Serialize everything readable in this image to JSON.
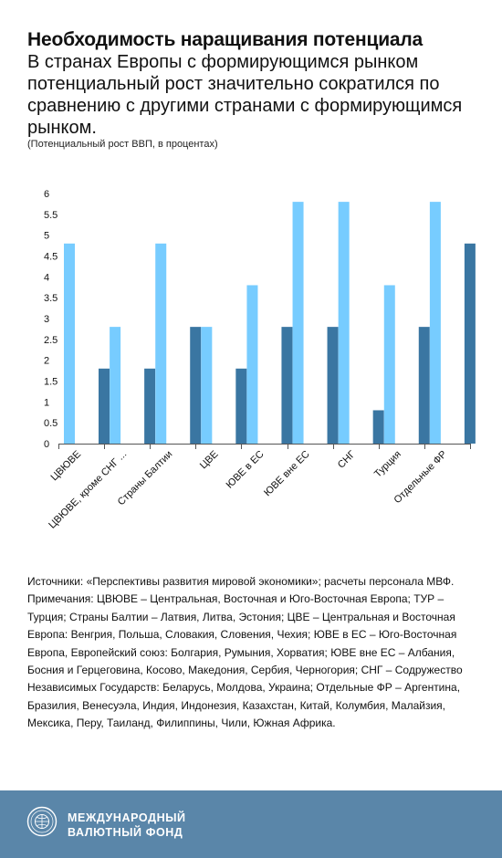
{
  "header": {
    "title": "Необходимость наращивания потенциала",
    "subtitle": "В странах Европы с формирующимся рынком потенциальный рост значительно сократился по сравнению с другими странами с формирующимся рынком.",
    "unit_note": "(Потенциальный рост ВВП, в процентах)"
  },
  "chart_data": {
    "type": "bar",
    "title": "Необходимость наращивания потенциала",
    "categories": [
      "ЦВЮВЕ",
      "ЦВЮВЕ, кроме СНГ ...",
      "Страны Балтии",
      "ЦВЕ",
      "ЮВЕ в ЕС",
      "ЮВЕ вне ЕС",
      "СНГ",
      "Турция",
      "Отдельные ФР"
    ],
    "series": [
      {
        "color": "#77ccff",
        "values": [
          4.8,
          2.8,
          4.8,
          2.8,
          3.8,
          5.8,
          5.8,
          3.8,
          5.8
        ]
      },
      {
        "color": "#3a76a2",
        "values": [
          1.8,
          1.8,
          2.8,
          1.8,
          2.8,
          2.8,
          0.8,
          2.8,
          4.8
        ]
      }
    ],
    "ylim": [
      0,
      6
    ],
    "yticks": [
      "0",
      "0.5",
      "1",
      "1.5",
      "2",
      "2.5",
      "3",
      "3.5",
      "4",
      "4.5",
      "5",
      "5.5",
      "6"
    ],
    "grid": false,
    "legend": "none"
  },
  "notes": {
    "sources": "Источники: «Перспективы развития мировой экономики»; расчеты персонала МВФ.",
    "remarks": "Примечания: ЦВЮВЕ – Центральная, Восточная и Юго-Восточная Европа; ТУР – Турция; Страны Балтии – Латвия, Литва, Эстония; ЦВЕ – Центральная и Восточная Европа: Венгрия, Польша, Словакия, Словения, Чехия; ЮВЕ в ЕС – Юго-Восточная Европа, Европейский союз: Болгария, Румыния, Хорватия; ЮВЕ вне ЕС – Албания, Босния и Герцеговина, Косово, Македония, Сербия, Черногория; СНГ – Содружество Независимых Государств: Беларусь, Молдова, Украина; Отдельные ФР – Аргентина, Бразилия, Венесуэла, Индия, Индонезия, Казахстан, Китай, Колумбия, Малайзия, Мексика, Перу, Таиланд, Филиппины, Чили, Южная Африка."
  },
  "footer": {
    "org_line1": "МЕЖДУНАРОДНЫЙ",
    "org_line2": "ВАЛЮТНЫЙ ФОНД",
    "footer_color": "#5a86a9",
    "logo_icon": "imf-seal-icon"
  }
}
